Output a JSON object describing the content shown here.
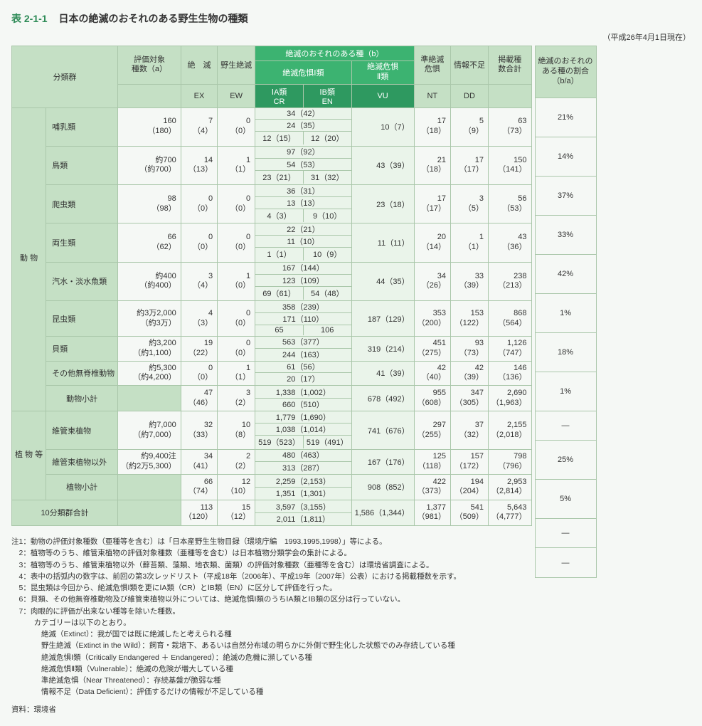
{
  "title_no": "表 2-1-1",
  "title_text": "日本の絶滅のおそれのある野生生物の種類",
  "date_note": "（平成26年4月1日現在）",
  "headers": {
    "group": "分類群",
    "eval_a": "評価対象\n種数（a）",
    "ex": "絶　滅",
    "ew": "野生絶滅",
    "b_top": "絶滅のおそれのある種（b）",
    "b_i": "絶滅危惧Ⅰ類",
    "b_ii": "絶滅危惧\nⅡ類",
    "cr_h": "ⅠA類",
    "en_h": "ⅠB類",
    "nt": "準絶滅\n危惧",
    "dd": "情報不足",
    "listed": "掲載種\n数合計",
    "ratio": "絶滅のおそれの\nある種の割合\n（b/a）",
    "ex_code": "EX",
    "ew_code": "EW",
    "cr_code": "CR",
    "en_code": "EN",
    "vu_code": "VU",
    "nt_code": "NT",
    "dd_code": "DD"
  },
  "side": {
    "animals": "動\n\n物",
    "plants": "植\n物\n等"
  },
  "rows": [
    {
      "k": "animal",
      "name": "哺乳類",
      "a": "160\n（180）",
      "ex": "7\n（4）",
      "ew": "0\n（0）",
      "b_total": "34（42）",
      "i_total": "24（35）",
      "cr": "12（15）",
      "en": "12（20）",
      "vu": "10（7）",
      "nt": "17\n（18）",
      "dd": "5\n（9）",
      "listed": "63\n（73）",
      "ratio": "21%"
    },
    {
      "k": "animal",
      "name": "鳥類",
      "a": "約700\n（約700）",
      "ex": "14\n（13）",
      "ew": "1\n（1）",
      "b_total": "97（92）",
      "i_total": "54（53）",
      "cr": "23（21）",
      "en": "31（32）",
      "vu": "43（39）",
      "nt": "21\n（18）",
      "dd": "17\n（17）",
      "listed": "150\n（141）",
      "ratio": "14%"
    },
    {
      "k": "animal",
      "name": "爬虫類",
      "a": "98\n（98）",
      "ex": "0\n（0）",
      "ew": "0\n（0）",
      "b_total": "36（31）",
      "i_total": "13（13）",
      "cr": "4（3）",
      "en": "9（10）",
      "vu": "23（18）",
      "nt": "17\n（17）",
      "dd": "3\n（5）",
      "listed": "56\n（53）",
      "ratio": "37%"
    },
    {
      "k": "animal",
      "name": "両生類",
      "a": "66\n（62）",
      "ex": "0\n（0）",
      "ew": "0\n（0）",
      "b_total": "22（21）",
      "i_total": "11（10）",
      "cr": "1（1）",
      "en": "10（9）",
      "vu": "11（11）",
      "nt": "20\n（14）",
      "dd": "1\n（1）",
      "listed": "43\n（36）",
      "ratio": "33%"
    },
    {
      "k": "animal",
      "name": "汽水・淡水魚類",
      "a": "約400\n（約400）",
      "ex": "3\n（4）",
      "ew": "1\n（0）",
      "b_total": "167（144）",
      "i_total": "123（109）",
      "cr": "69（61）",
      "en": "54（48）",
      "vu": "44（35）",
      "nt": "34\n（26）",
      "dd": "33\n（39）",
      "listed": "238\n（213）",
      "ratio": "42%"
    },
    {
      "k": "animal",
      "name": "昆虫類",
      "a": "約3万2,000\n（約3万）",
      "ex": "4\n（3）",
      "ew": "0\n（0）",
      "b_total": "358（239）",
      "i_total": "171（110）",
      "cr": "65",
      "en": "106",
      "vu": "187（129）",
      "nt": "353\n（200）",
      "dd": "153\n（122）",
      "listed": "868\n（564）",
      "ratio": "1%"
    },
    {
      "k": "animal",
      "name": "貝類",
      "a": "約3,200\n（約1,100）",
      "ex": "19\n（22）",
      "ew": "0\n（0）",
      "b_total": "563（377）",
      "i_total": "244（163）",
      "no_split": true,
      "vu": "319（214）",
      "nt": "451\n（275）",
      "dd": "93\n（73）",
      "listed": "1,126\n（747）",
      "ratio": "18%"
    },
    {
      "k": "animal",
      "name": "その他無脊椎動物",
      "a": "約5,300\n（約4,200）",
      "ex": "0\n（0）",
      "ew": "1\n（1）",
      "b_total": "61（56）",
      "i_total": "20（17）",
      "no_split": true,
      "vu": "41（39）",
      "nt": "42\n（40）",
      "dd": "42\n（39）",
      "listed": "146\n（136）",
      "ratio": "1%"
    }
  ],
  "animal_subtotal": {
    "name": "動物小計",
    "ex": "47\n（46）",
    "ew": "3\n（2）",
    "b_total": "1,338（1,002）",
    "i_total": "660（510）",
    "vu": "678（492）",
    "nt": "955\n（608）",
    "dd": "347\n（305）",
    "listed": "2,690\n（1,963）",
    "ratio": "—"
  },
  "plants": [
    {
      "name": "維管束植物",
      "a": "約7,000\n（約7,000）",
      "ex": "32\n（33）",
      "ew": "10\n（8）",
      "b_total": "1,779（1,690）",
      "i_total": "1,038（1,014）",
      "cr": "519（523）",
      "en": "519（491）",
      "vu": "741（676）",
      "nt": "297\n（255）",
      "dd": "37\n（32）",
      "listed": "2,155\n（2,018）",
      "ratio": "25%"
    },
    {
      "name": "維管束植物以外",
      "a": "約9,400注\n（約2万5,300）",
      "ex": "34\n（41）",
      "ew": "2\n（2）",
      "b_total": "480（463）",
      "i_total": "313（287）",
      "no_split": true,
      "vu": "167（176）",
      "nt": "125\n（118）",
      "dd": "157\n（172）",
      "listed": "798\n（796）",
      "ratio": "5%"
    }
  ],
  "plant_subtotal": {
    "name": "植物小計",
    "ex": "66\n（74）",
    "ew": "12\n（10）",
    "b_total": "2,259（2,153）",
    "i_total": "1,351（1,301）",
    "vu": "908（852）",
    "nt": "422\n（373）",
    "dd": "194\n（204）",
    "listed": "2,953\n（2,814）",
    "ratio": "—"
  },
  "grand": {
    "name": "10分類群合計",
    "ex": "113\n（120）",
    "ew": "15\n（12）",
    "b_total": "3,597（3,155）",
    "i_total": "2,011（1,811）",
    "vu": "1,586（1,344）",
    "nt": "1,377\n（981）",
    "dd": "541\n（509）",
    "listed": "5,643\n（4,777）",
    "ratio": "—"
  },
  "notes": [
    "注1：動物の評価対象種数（亜種等を含む）は「日本産野生生物目録（環境庁編　1993,1995,1998）」等による。",
    "　2：植物等のうち、維管束植物の評価対象種数（亜種等を含む）は日本植物分類学会の集計による。",
    "　3：植物等のうち、維管束植物以外（蘚苔類、藻類、地衣類、菌類）の評価対象種数（亜種等を含む）は環境省調査による。",
    "　4：表中の括弧内の数字は、前回の第3次レッドリスト（平成18年（2006年）、平成19年（2007年）公表）における掲載種数を示す。",
    "　5：昆虫類は今回から、絶滅危惧Ⅰ類を更にⅠA類（CR）とⅠB類（EN）に区分して評価を行った。",
    "　6：貝類、その他無脊椎動物及び維管束植物以外については、絶滅危惧Ⅰ類のうちⅠA類とⅠB類の区分は行っていない。",
    "　7：肉眼的に評価が出来ない種等を除いた種数。",
    "　　　カテゴリーは以下のとおり。",
    "　　　　絶滅（Extinct）：我が国では既に絶滅したと考えられる種",
    "　　　　野生絶滅（Extinct in the Wild）：飼育・栽培下、あるいは自然分布域の明らかに外側で野生化した状態でのみ存続している種",
    "　　　　絶滅危惧Ⅰ類（Critically Endangered ＋ Endangered）：絶滅の危機に瀕している種",
    "　　　　絶滅危惧Ⅱ類（Vulnerable）：絶滅の危険が増大している種",
    "　　　　準絶滅危惧（Near Threatened）：存続基盤が脆弱な種",
    "　　　　情報不足（Data Deficient）：評価するだけの情報が不足している種"
  ],
  "source": "資料：環境省"
}
